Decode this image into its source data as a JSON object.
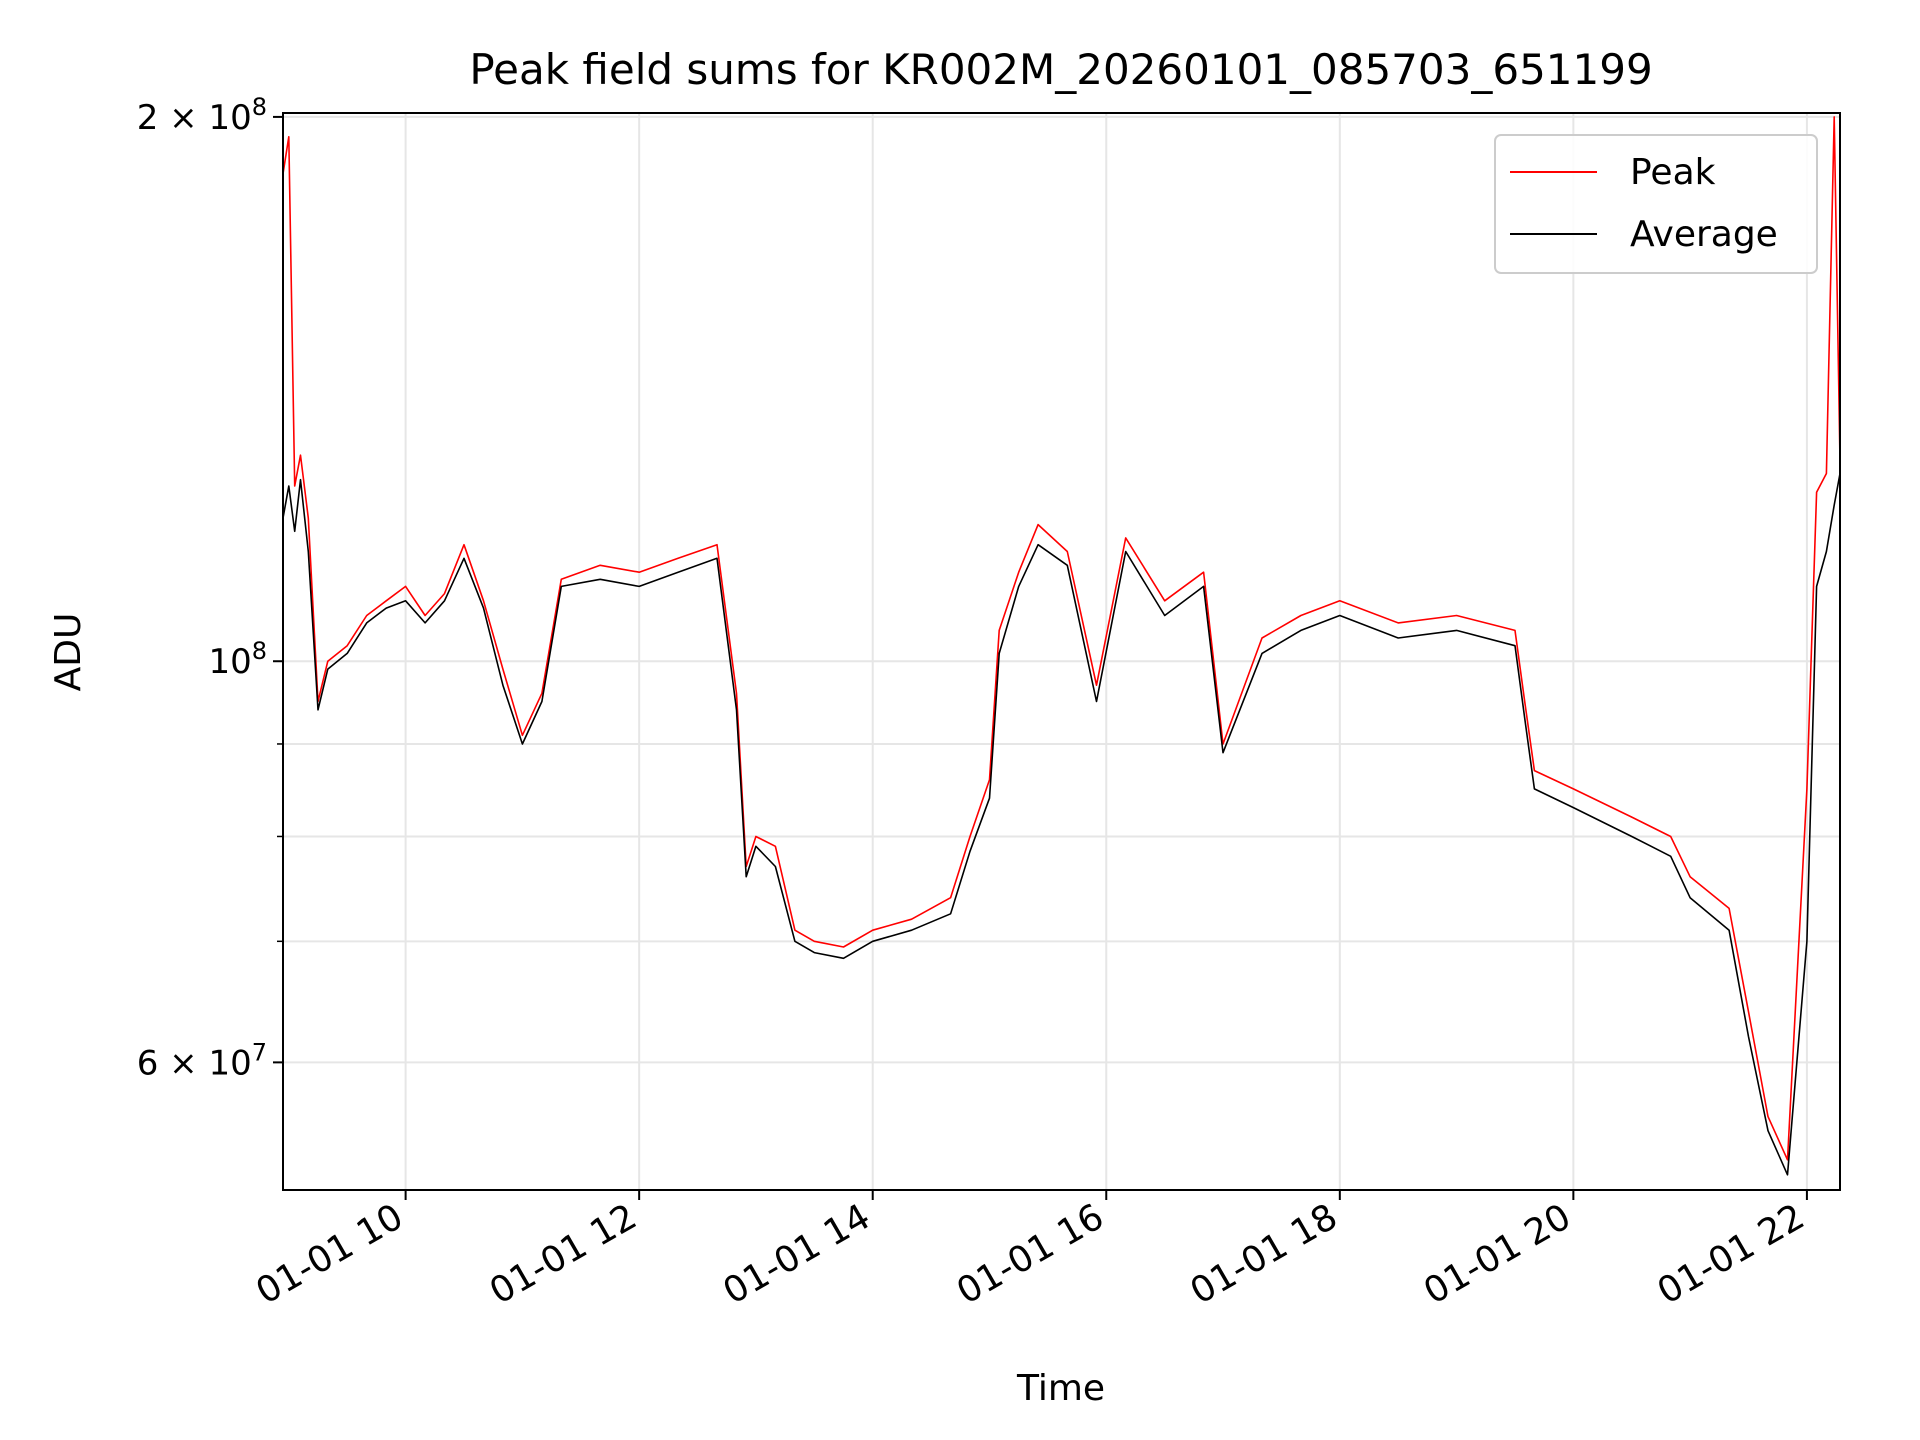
{
  "chart_data": {
    "type": "line",
    "title": "Peak field sums for KR002M_20260101_085703_651199",
    "xlabel": "Time",
    "ylabel": "ADU",
    "yscale": "log",
    "ylim": [
      51000000,
      201000000
    ],
    "xlim": [
      "2026-01-01 08:57",
      "2026-01-01 22:17"
    ],
    "x_ticks": [
      "01-01 10",
      "01-01 12",
      "01-01 14",
      "01-01 16",
      "01-01 18",
      "01-01 20",
      "01-01 22"
    ],
    "y_ticks": [
      "2 × 10^8",
      "10^8",
      "6 × 10^7"
    ],
    "grid": true,
    "legend_position": "upper right",
    "colors": {
      "Peak": "#ff0000",
      "Average": "#000000"
    },
    "series": [
      {
        "name": "Peak",
        "x": [
          "2026-01-01 08:57",
          "2026-01-01 09:00",
          "2026-01-01 09:03",
          "2026-01-01 09:06",
          "2026-01-01 09:10",
          "2026-01-01 09:15",
          "2026-01-01 09:20",
          "2026-01-01 09:30",
          "2026-01-01 09:40",
          "2026-01-01 09:50",
          "2026-01-01 10:00",
          "2026-01-01 10:10",
          "2026-01-01 10:20",
          "2026-01-01 10:30",
          "2026-01-01 10:40",
          "2026-01-01 10:50",
          "2026-01-01 11:00",
          "2026-01-01 11:10",
          "2026-01-01 11:20",
          "2026-01-01 11:40",
          "2026-01-01 12:00",
          "2026-01-01 12:20",
          "2026-01-01 12:40",
          "2026-01-01 12:50",
          "2026-01-01 12:55",
          "2026-01-01 13:00",
          "2026-01-01 13:10",
          "2026-01-01 13:20",
          "2026-01-01 13:30",
          "2026-01-01 13:45",
          "2026-01-01 14:00",
          "2026-01-01 14:20",
          "2026-01-01 14:40",
          "2026-01-01 14:50",
          "2026-01-01 15:00",
          "2026-01-01 15:05",
          "2026-01-01 15:15",
          "2026-01-01 15:25",
          "2026-01-01 15:40",
          "2026-01-01 15:55",
          "2026-01-01 16:10",
          "2026-01-01 16:30",
          "2026-01-01 16:50",
          "2026-01-01 17:00",
          "2026-01-01 17:20",
          "2026-01-01 17:40",
          "2026-01-01 18:00",
          "2026-01-01 18:30",
          "2026-01-01 19:00",
          "2026-01-01 19:30",
          "2026-01-01 19:35",
          "2026-01-01 19:40",
          "2026-01-01 20:00",
          "2026-01-01 20:30",
          "2026-01-01 20:50",
          "2026-01-01 21:00",
          "2026-01-01 21:20",
          "2026-01-01 21:30",
          "2026-01-01 21:40",
          "2026-01-01 21:50",
          "2026-01-01 22:00",
          "2026-01-01 22:05",
          "2026-01-01 22:10",
          "2026-01-01 22:14",
          "2026-01-01 22:17"
        ],
        "values": [
          186000000,
          195000000,
          125000000,
          130000000,
          120000000,
          95000000,
          100000000,
          102000000,
          106000000,
          108000000,
          110000000,
          106000000,
          109000000,
          116000000,
          108000000,
          99000000,
          91000000,
          96000000,
          111000000,
          113000000,
          112000000,
          114000000,
          116000000,
          96000000,
          77000000,
          80000000,
          79000000,
          71000000,
          70000000,
          69500000,
          71000000,
          72000000,
          74000000,
          80000000,
          86000000,
          104000000,
          112000000,
          119000000,
          115000000,
          97000000,
          117000000,
          108000000,
          112000000,
          90000000,
          103000000,
          106000000,
          108000000,
          105000000,
          106000000,
          104000000,
          95000000,
          87000000,
          85000000,
          82000000,
          80000000,
          76000000,
          73000000,
          64000000,
          56000000,
          53000000,
          85000000,
          124000000,
          127000000,
          200000000,
          129000000
        ]
      },
      {
        "name": "Average",
        "x": [
          "2026-01-01 08:57",
          "2026-01-01 09:00",
          "2026-01-01 09:03",
          "2026-01-01 09:06",
          "2026-01-01 09:10",
          "2026-01-01 09:15",
          "2026-01-01 09:20",
          "2026-01-01 09:30",
          "2026-01-01 09:40",
          "2026-01-01 09:50",
          "2026-01-01 10:00",
          "2026-01-01 10:10",
          "2026-01-01 10:20",
          "2026-01-01 10:30",
          "2026-01-01 10:40",
          "2026-01-01 10:50",
          "2026-01-01 11:00",
          "2026-01-01 11:10",
          "2026-01-01 11:20",
          "2026-01-01 11:40",
          "2026-01-01 12:00",
          "2026-01-01 12:20",
          "2026-01-01 12:40",
          "2026-01-01 12:50",
          "2026-01-01 12:55",
          "2026-01-01 13:00",
          "2026-01-01 13:10",
          "2026-01-01 13:20",
          "2026-01-01 13:30",
          "2026-01-01 13:45",
          "2026-01-01 14:00",
          "2026-01-01 14:20",
          "2026-01-01 14:40",
          "2026-01-01 14:50",
          "2026-01-01 15:00",
          "2026-01-01 15:05",
          "2026-01-01 15:15",
          "2026-01-01 15:25",
          "2026-01-01 15:40",
          "2026-01-01 15:55",
          "2026-01-01 16:10",
          "2026-01-01 16:30",
          "2026-01-01 16:50",
          "2026-01-01 17:00",
          "2026-01-01 17:20",
          "2026-01-01 17:40",
          "2026-01-01 18:00",
          "2026-01-01 18:30",
          "2026-01-01 19:00",
          "2026-01-01 19:30",
          "2026-01-01 19:35",
          "2026-01-01 19:40",
          "2026-01-01 20:00",
          "2026-01-01 20:30",
          "2026-01-01 20:50",
          "2026-01-01 21:00",
          "2026-01-01 21:20",
          "2026-01-01 21:30",
          "2026-01-01 21:40",
          "2026-01-01 21:50",
          "2026-01-01 22:00",
          "2026-01-01 22:05",
          "2026-01-01 22:10",
          "2026-01-01 22:14",
          "2026-01-01 22:17"
        ],
        "values": [
          120000000,
          125000000,
          118000000,
          126000000,
          115000000,
          94000000,
          99000000,
          101000000,
          105000000,
          107000000,
          108000000,
          105000000,
          108000000,
          114000000,
          107000000,
          97000000,
          90000000,
          95000000,
          110000000,
          111000000,
          110000000,
          112000000,
          114000000,
          94000000,
          76000000,
          79000000,
          77000000,
          70000000,
          69000000,
          68500000,
          70000000,
          71000000,
          72500000,
          78500000,
          84000000,
          101000000,
          110000000,
          116000000,
          113000000,
          95000000,
          115000000,
          106000000,
          110000000,
          89000000,
          101000000,
          104000000,
          106000000,
          103000000,
          104000000,
          102000000,
          93000000,
          85000000,
          83000000,
          80000000,
          78000000,
          74000000,
          71000000,
          62000000,
          55000000,
          52000000,
          70000000,
          110000000,
          115000000,
          122000000,
          127000000
        ]
      }
    ]
  }
}
